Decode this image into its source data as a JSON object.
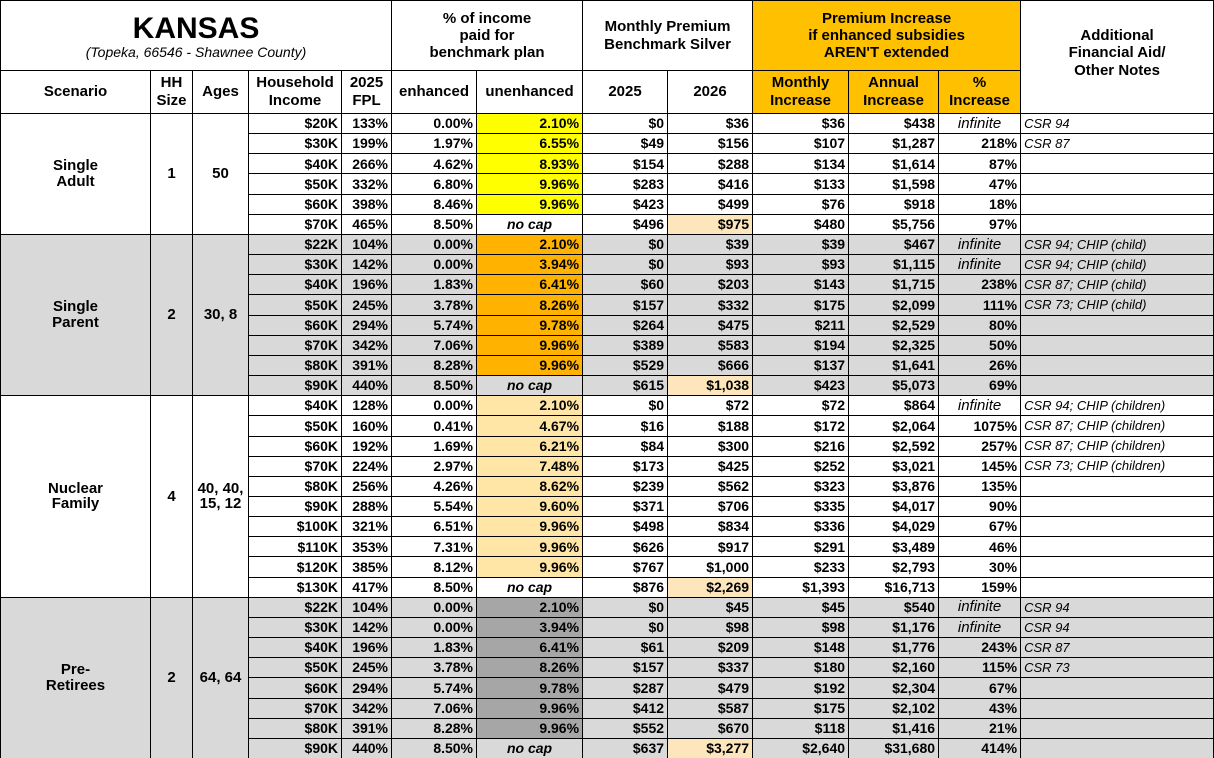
{
  "header": {
    "title": "KANSAS",
    "subtitle": "(Topeka, 66546 - Shawnee County)",
    "income_pct": [
      "% of income",
      "paid for",
      "benchmark plan"
    ],
    "premium": [
      "Monthly Premium",
      "Benchmark Silver"
    ],
    "increase": [
      "Premium Increase",
      "if enhanced subsidies",
      "AREN'T extended"
    ],
    "notes": [
      "Additional",
      "Financial Aid/",
      "Other Notes"
    ],
    "columns": [
      "Scenario",
      "HH Size",
      "Ages",
      "Household Income",
      "2025 FPL",
      "enhanced",
      "unenhanced",
      "2025",
      "2026",
      "Monthly Increase",
      "Annual Increase",
      "% Increase"
    ]
  },
  "groups": [
    {
      "scenario": "Single Adult",
      "hh_size": "1",
      "ages": "50",
      "rows": [
        [
          "$20K",
          "133%",
          "0.00%",
          "2.10%",
          "$0",
          "$36",
          "$36",
          "$438",
          "infinite",
          "CSR 94"
        ],
        [
          "$30K",
          "199%",
          "1.97%",
          "6.55%",
          "$49",
          "$156",
          "$107",
          "$1,287",
          "218%",
          "CSR 87"
        ],
        [
          "$40K",
          "266%",
          "4.62%",
          "8.93%",
          "$154",
          "$288",
          "$134",
          "$1,614",
          "87%"
        ],
        [
          "$50K",
          "332%",
          "6.80%",
          "9.96%",
          "$283",
          "$416",
          "$133",
          "$1,598",
          "47%"
        ],
        [
          "$60K",
          "398%",
          "8.46%",
          "9.96%",
          "$423",
          "$499",
          "$76",
          "$918",
          "18%"
        ],
        [
          "$70K",
          "465%",
          "8.50%",
          "no cap",
          "$496",
          "$975",
          "$480",
          "$5,756",
          "97%"
        ]
      ]
    },
    {
      "scenario": "Single Parent",
      "hh_size": "2",
      "ages": "30, 8",
      "rows": [
        [
          "$22K",
          "104%",
          "0.00%",
          "2.10%",
          "$0",
          "$39",
          "$39",
          "$467",
          "infinite",
          "CSR 94; CHIP (child)"
        ],
        [
          "$30K",
          "142%",
          "0.00%",
          "3.94%",
          "$0",
          "$93",
          "$93",
          "$1,115",
          "infinite",
          "CSR 94; CHIP (child)"
        ],
        [
          "$40K",
          "196%",
          "1.83%",
          "6.41%",
          "$60",
          "$203",
          "$143",
          "$1,715",
          "238%",
          "CSR 87; CHIP (child)"
        ],
        [
          "$50K",
          "245%",
          "3.78%",
          "8.26%",
          "$157",
          "$332",
          "$175",
          "$2,099",
          "111%",
          "CSR 73; CHIP (child)"
        ],
        [
          "$60K",
          "294%",
          "5.74%",
          "9.78%",
          "$264",
          "$475",
          "$211",
          "$2,529",
          "80%"
        ],
        [
          "$70K",
          "342%",
          "7.06%",
          "9.96%",
          "$389",
          "$583",
          "$194",
          "$2,325",
          "50%"
        ],
        [
          "$80K",
          "391%",
          "8.28%",
          "9.96%",
          "$529",
          "$666",
          "$137",
          "$1,641",
          "26%"
        ],
        [
          "$90K",
          "440%",
          "8.50%",
          "no cap",
          "$615",
          "$1,038",
          "$423",
          "$5,073",
          "69%"
        ]
      ]
    },
    {
      "scenario": "Nuclear Family",
      "hh_size": "4",
      "ages": "40, 40, 15, 12",
      "rows": [
        [
          "$40K",
          "128%",
          "0.00%",
          "2.10%",
          "$0",
          "$72",
          "$72",
          "$864",
          "infinite",
          "CSR 94; CHIP (children)"
        ],
        [
          "$50K",
          "160%",
          "0.41%",
          "4.67%",
          "$16",
          "$188",
          "$172",
          "$2,064",
          "1075%",
          "CSR 87; CHIP (children)"
        ],
        [
          "$60K",
          "192%",
          "1.69%",
          "6.21%",
          "$84",
          "$300",
          "$216",
          "$2,592",
          "257%",
          "CSR 87; CHIP (children)"
        ],
        [
          "$70K",
          "224%",
          "2.97%",
          "7.48%",
          "$173",
          "$425",
          "$252",
          "$3,021",
          "145%",
          "CSR 73; CHIP (children)"
        ],
        [
          "$80K",
          "256%",
          "4.26%",
          "8.62%",
          "$239",
          "$562",
          "$323",
          "$3,876",
          "135%"
        ],
        [
          "$90K",
          "288%",
          "5.54%",
          "9.60%",
          "$371",
          "$706",
          "$335",
          "$4,017",
          "90%"
        ],
        [
          "$100K",
          "321%",
          "6.51%",
          "9.96%",
          "$498",
          "$834",
          "$336",
          "$4,029",
          "67%"
        ],
        [
          "$110K",
          "353%",
          "7.31%",
          "9.96%",
          "$626",
          "$917",
          "$291",
          "$3,489",
          "46%"
        ],
        [
          "$120K",
          "385%",
          "8.12%",
          "9.96%",
          "$767",
          "$1,000",
          "$233",
          "$2,793",
          "30%"
        ],
        [
          "$130K",
          "417%",
          "8.50%",
          "no cap",
          "$876",
          "$2,269",
          "$1,393",
          "$16,713",
          "159%"
        ]
      ]
    },
    {
      "scenario": "Pre-Retirees",
      "hh_size": "2",
      "ages": "64, 64",
      "rows": [
        [
          "$22K",
          "104%",
          "0.00%",
          "2.10%",
          "$0",
          "$45",
          "$45",
          "$540",
          "infinite",
          "CSR 94"
        ],
        [
          "$30K",
          "142%",
          "0.00%",
          "3.94%",
          "$0",
          "$98",
          "$98",
          "$1,176",
          "infinite",
          "CSR 94"
        ],
        [
          "$40K",
          "196%",
          "1.83%",
          "6.41%",
          "$61",
          "$209",
          "$148",
          "$1,776",
          "243%",
          "CSR 87"
        ],
        [
          "$50K",
          "245%",
          "3.78%",
          "8.26%",
          "$157",
          "$337",
          "$180",
          "$2,160",
          "115%",
          "CSR 73"
        ],
        [
          "$60K",
          "294%",
          "5.74%",
          "9.78%",
          "$287",
          "$479",
          "$192",
          "$2,304",
          "67%"
        ],
        [
          "$70K",
          "342%",
          "7.06%",
          "9.96%",
          "$412",
          "$587",
          "$175",
          "$2,102",
          "43%"
        ],
        [
          "$80K",
          "391%",
          "8.28%",
          "9.96%",
          "$552",
          "$670",
          "$118",
          "$1,416",
          "21%"
        ],
        [
          "$90K",
          "440%",
          "8.50%",
          "no cap",
          "$637",
          "$3,277",
          "$2,640",
          "$31,680",
          "414%"
        ]
      ]
    }
  ]
}
